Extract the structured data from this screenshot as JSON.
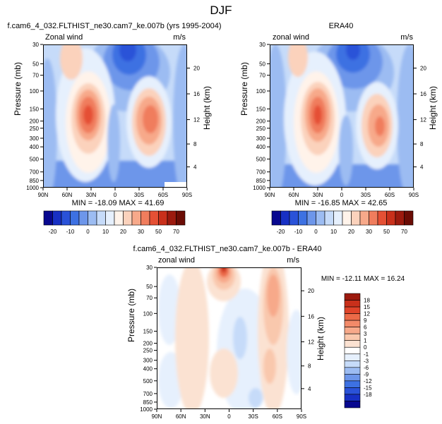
{
  "page_title": "DJF",
  "colors": {
    "levels_abs": [
      "#08088f",
      "#1730c4",
      "#2a52d8",
      "#3d71e2",
      "#6d96ea",
      "#9cbcf2",
      "#c6dbf9",
      "#e6f0fd",
      "#fff3ea",
      "#fbd2bc",
      "#f7a98a",
      "#f07d5d",
      "#e55034",
      "#c9301b",
      "#9c1a0e",
      "#6b0c05"
    ],
    "levels_diff": [
      "#08088f",
      "#1730c4",
      "#2a52d8",
      "#3d71e2",
      "#6d96ea",
      "#9cbcf2",
      "#c6dbf9",
      "#e6f0fd",
      "#ffffff",
      "#fbe2d2",
      "#f9c8ad",
      "#f7a98a",
      "#f28a69",
      "#ec6a48",
      "#e0442a",
      "#c9301b",
      "#9c1a0e"
    ]
  },
  "chart_data": [
    {
      "type": "heatmap",
      "title": "f.cam6_4_032.FLTHIST_ne30.cam7_ke.007b (yrs 1995-2004)",
      "left_label": "Zonal wind",
      "right_label": "m/s",
      "ylabel": "Pressure (mb)",
      "ylabel_right": "Height (km)",
      "x_ticks": [
        "90N",
        "60N",
        "30N",
        "0",
        "30S",
        "60S",
        "90S"
      ],
      "y_ticks": [
        "30",
        "50",
        "70",
        "100",
        "150",
        "200",
        "250",
        "300",
        "400",
        "500",
        "700",
        "850",
        "1000"
      ],
      "height_ticks": [
        "20",
        "16",
        "12",
        "8",
        "4"
      ],
      "stats": "MIN = -18.09   MAX =  41.69",
      "colorbar_labels": [
        "-20",
        "-10",
        "0",
        "10",
        "20",
        "30",
        "50",
        "70"
      ]
    },
    {
      "type": "heatmap",
      "title": "ERA40",
      "left_label": "zonal wind",
      "right_label": "m/s",
      "ylabel": "Pressure (mb)",
      "ylabel_right": "Height (km)",
      "x_ticks": [
        "90N",
        "60N",
        "30N",
        "0",
        "30S",
        "60S",
        "90S"
      ],
      "y_ticks": [
        "30",
        "50",
        "70",
        "100",
        "150",
        "200",
        "250",
        "300",
        "400",
        "500",
        "700",
        "850",
        "1000"
      ],
      "height_ticks": [
        "20",
        "16",
        "12",
        "8",
        "4"
      ],
      "stats": "MIN = -16.85   MAX =  42.65",
      "colorbar_labels": [
        "-20",
        "-10",
        "0",
        "10",
        "20",
        "30",
        "50",
        "70"
      ]
    },
    {
      "type": "heatmap",
      "title": "f.cam6_4_032.FLTHIST_ne30.cam7_ke.007b - ERA40",
      "left_label": "zonal wind",
      "right_label": "m/s",
      "ylabel": "Pressure (mb)",
      "ylabel_right": "Height (km)",
      "x_ticks": [
        "90N",
        "60N",
        "30N",
        "0",
        "30S",
        "60S",
        "90S"
      ],
      "y_ticks": [
        "30",
        "50",
        "70",
        "100",
        "150",
        "200",
        "250",
        "300",
        "400",
        "500",
        "700",
        "850",
        "1000"
      ],
      "height_ticks": [
        "20",
        "16",
        "12",
        "8",
        "4"
      ],
      "stats": "MIN = -12.11   MAX =  16.24",
      "colorbar_labels": [
        "18",
        "15",
        "12",
        "9",
        "6",
        "3",
        "1",
        "0",
        "-1",
        "-3",
        "-6",
        "-9",
        "-12",
        "-15",
        "-18"
      ]
    }
  ]
}
